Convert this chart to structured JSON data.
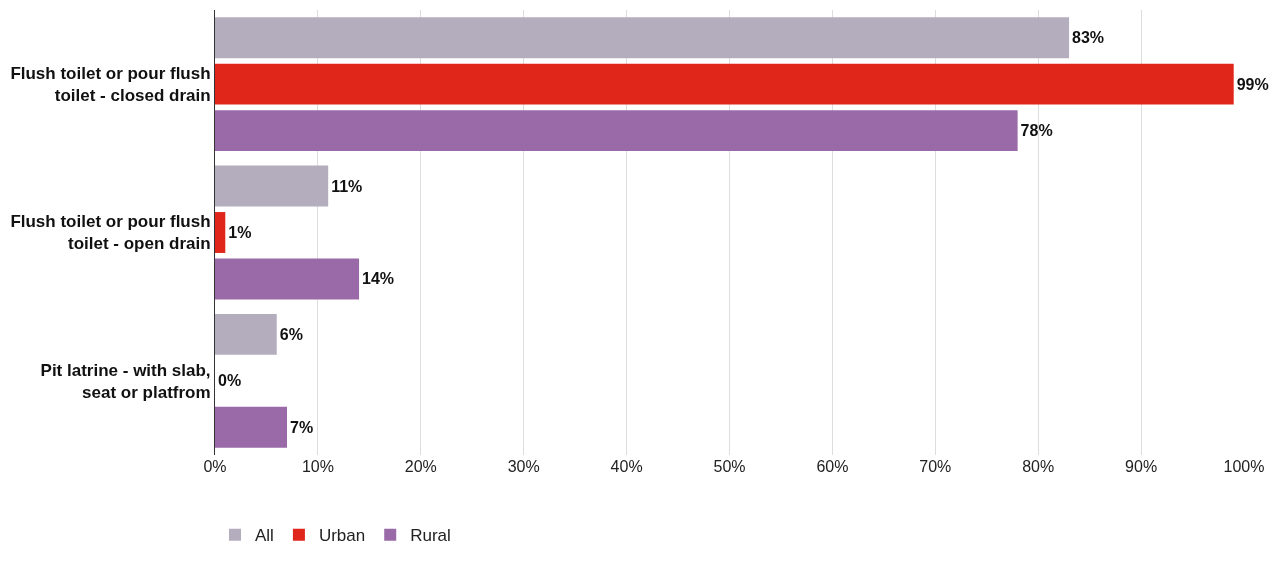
{
  "chart_data": {
    "type": "bar",
    "orientation": "horizontal",
    "categories": [
      "Flush toilet or pour flush toilet - closed drain",
      "Flush toilet or pour flush toilet - open drain",
      "Pit latrine - with slab, seat or platfrom"
    ],
    "series": [
      {
        "name": "All",
        "color": "#b3adbd",
        "values": [
          83,
          11,
          6
        ],
        "value_labels": [
          "83%",
          "11%",
          "6%"
        ]
      },
      {
        "name": "Urban",
        "color": "#e0251b",
        "values": [
          99,
          1,
          0
        ],
        "value_labels": [
          "99%",
          "1%",
          "0%"
        ]
      },
      {
        "name": "Rural",
        "color": "#9a6aa8",
        "values": [
          78,
          14,
          7
        ],
        "value_labels": [
          "78%",
          "14%",
          "7%"
        ]
      }
    ],
    "xlim": [
      0,
      100
    ],
    "xticks": [
      {
        "value": 0,
        "label": "0%"
      },
      {
        "value": 10,
        "label": "10%"
      },
      {
        "value": 20,
        "label": "20%"
      },
      {
        "value": 30,
        "label": "30%"
      },
      {
        "value": 40,
        "label": "40%"
      },
      {
        "value": 50,
        "label": "50%"
      },
      {
        "value": 60,
        "label": "60%"
      },
      {
        "value": 70,
        "label": "70%"
      },
      {
        "value": 80,
        "label": "80%"
      },
      {
        "value": 90,
        "label": "90%"
      },
      {
        "value": 100,
        "label": "100%"
      }
    ],
    "grid": "x",
    "legend": "bottom left"
  }
}
